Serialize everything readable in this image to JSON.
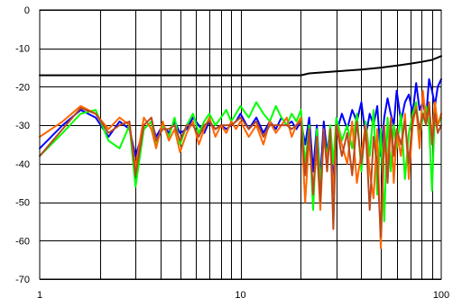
{
  "chart_data": {
    "type": "line",
    "x_scale": "log",
    "xlim": [
      1,
      100
    ],
    "ylim": [
      -70,
      0
    ],
    "grid": true,
    "legend": "none",
    "x_tick_labels": [
      "1",
      "10",
      "100"
    ],
    "y_ticks": [
      0,
      -10,
      -20,
      -30,
      -40,
      -50,
      -60,
      -70
    ],
    "y_tick_labels": [
      "0",
      "-10",
      "-20",
      "-30",
      "-40",
      "-50",
      "-60",
      "-70"
    ],
    "series": [
      {
        "color": "#000000",
        "width": 4,
        "x": [
          1,
          20,
          22,
          30,
          40,
          50,
          60,
          70,
          80,
          90,
          100
        ],
        "y": [
          -17,
          -17,
          -16.5,
          -16,
          -15.5,
          -15,
          -14.5,
          -14,
          -13.5,
          -13,
          -12
        ]
      },
      {
        "color": "#0000ff",
        "width": 2,
        "x": [
          1,
          1.3,
          1.6,
          1.9,
          2.2,
          2.5,
          2.8,
          3.0,
          3.3,
          3.6,
          3.8,
          4.1,
          4.4,
          4.7,
          5.0,
          5.4,
          5.8,
          6.2,
          6.6,
          7.0,
          7.5,
          8.0,
          8.5,
          9.0,
          9.5,
          10,
          11,
          12,
          13,
          14,
          15,
          16,
          17,
          18,
          19,
          20,
          21,
          22,
          23,
          24,
          25,
          26,
          27,
          28,
          29,
          30,
          32,
          34,
          36,
          38,
          40,
          42,
          44,
          46,
          48,
          50,
          52,
          54,
          56,
          58,
          60,
          63,
          66,
          69,
          72,
          75,
          78,
          81,
          84,
          87,
          90,
          93,
          96,
          100
        ],
        "y": [
          -36,
          -30,
          -26,
          -28,
          -33,
          -29,
          -31,
          -38,
          -31,
          -29,
          -33,
          -30,
          -32,
          -29,
          -32,
          -31,
          -28,
          -30,
          -32,
          -29,
          -31,
          -30,
          -31,
          -30,
          -29,
          -27,
          -31,
          -28,
          -32,
          -29,
          -31,
          -28,
          -30,
          -29,
          -31,
          -29,
          -35,
          -28,
          -42,
          -30,
          -44,
          -29,
          -37,
          -31,
          -45,
          -32,
          -27,
          -31,
          -26,
          -29,
          -24,
          -33,
          -27,
          -30,
          -25,
          -38,
          -28,
          -23,
          -27,
          -30,
          -21,
          -29,
          -24,
          -22,
          -27,
          -19,
          -26,
          -24,
          -28,
          -18,
          -21,
          -25,
          -20,
          -18
        ]
      },
      {
        "color": "#00ff00",
        "width": 2,
        "x": [
          1,
          1.3,
          1.6,
          1.9,
          2.2,
          2.5,
          2.8,
          3.0,
          3.3,
          3.6,
          3.8,
          4.1,
          4.4,
          4.7,
          5.0,
          5.4,
          5.8,
          6.2,
          6.6,
          7.0,
          7.5,
          8.0,
          8.5,
          9.0,
          9.5,
          10,
          11,
          12,
          13,
          14,
          15,
          16,
          17,
          18,
          19,
          20,
          21,
          22,
          23,
          24,
          25,
          26,
          27,
          28,
          29,
          30,
          32,
          34,
          36,
          38,
          40,
          42,
          44,
          46,
          48,
          50,
          52,
          54,
          56,
          58,
          60,
          63,
          66,
          69,
          72,
          75,
          78,
          81,
          84,
          87,
          90,
          93,
          96,
          100
        ],
        "y": [
          -38,
          -32,
          -27,
          -26,
          -34,
          -36,
          -30,
          -46,
          -31,
          -29,
          -35,
          -30,
          -33,
          -28,
          -35,
          -30,
          -27,
          -32,
          -29,
          -27,
          -30,
          -28,
          -26,
          -29,
          -27,
          -25,
          -28,
          -24,
          -27,
          -29,
          -25,
          -28,
          -30,
          -27,
          -29,
          -26,
          -40,
          -30,
          -52,
          -31,
          -45,
          -34,
          -38,
          -30,
          -40,
          -28,
          -34,
          -30,
          -36,
          -27,
          -42,
          -29,
          -38,
          -26,
          -48,
          -31,
          -55,
          -28,
          -42,
          -30,
          -36,
          -27,
          -44,
          -32,
          -27,
          -24,
          -33,
          -28,
          -25,
          -30,
          -47,
          -26,
          -30,
          -28
        ]
      },
      {
        "color": "#ff6600",
        "width": 2,
        "x": [
          1,
          1.3,
          1.6,
          1.9,
          2.2,
          2.5,
          2.8,
          3.0,
          3.3,
          3.6,
          3.8,
          4.1,
          4.4,
          4.7,
          5.0,
          5.4,
          5.8,
          6.2,
          6.6,
          7.0,
          7.5,
          8.0,
          8.5,
          9.0,
          9.5,
          10,
          11,
          12,
          13,
          14,
          15,
          16,
          17,
          18,
          19,
          20,
          21,
          22,
          23,
          24,
          25,
          26,
          27,
          28,
          29,
          30,
          32,
          34,
          36,
          38,
          40,
          42,
          44,
          46,
          48,
          50,
          52,
          54,
          56,
          58,
          60,
          63,
          66,
          69,
          72,
          75,
          78,
          81,
          84,
          87,
          90,
          93,
          96,
          100
        ],
        "y": [
          -33,
          -29,
          -25,
          -27,
          -31,
          -28,
          -30,
          -41,
          -28,
          -31,
          -36,
          -29,
          -34,
          -31,
          -37,
          -32,
          -29,
          -35,
          -31,
          -28,
          -33,
          -30,
          -32,
          -29,
          -31,
          -29,
          -33,
          -30,
          -35,
          -29,
          -32,
          -30,
          -28,
          -33,
          -30,
          -28,
          -50,
          -33,
          -47,
          -36,
          -52,
          -32,
          -39,
          -34,
          -48,
          -30,
          -35,
          -40,
          -29,
          -45,
          -37,
          -30,
          -42,
          -49,
          -31,
          -62,
          -34,
          -40,
          -28,
          -45,
          -32,
          -38,
          -27,
          -44,
          -30,
          -25,
          -36,
          -21,
          -29,
          -26,
          -33,
          -24,
          -30,
          -27
        ]
      },
      {
        "color": "#b84a1e",
        "width": 2,
        "x": [
          1,
          1.3,
          1.6,
          1.9,
          2.2,
          2.5,
          2.8,
          3.0,
          3.3,
          3.6,
          3.8,
          4.1,
          4.4,
          4.7,
          5.0,
          5.4,
          5.8,
          6.2,
          6.6,
          7.0,
          7.5,
          8.0,
          8.5,
          9.0,
          9.5,
          10,
          11,
          12,
          13,
          14,
          15,
          16,
          17,
          18,
          19,
          20,
          21,
          22,
          23,
          24,
          25,
          26,
          27,
          28,
          29,
          30,
          32,
          34,
          36,
          38,
          40,
          42,
          44,
          46,
          48,
          50,
          52,
          54,
          56,
          58,
          60,
          63,
          66,
          69,
          72,
          75,
          78,
          81,
          84,
          87,
          90,
          93,
          96,
          100
        ],
        "y": [
          -38,
          -31,
          -25.5,
          -27,
          -32,
          -30,
          -29,
          -43,
          -30,
          -28,
          -34,
          -31,
          -31,
          -30,
          -34,
          -30,
          -30,
          -33,
          -30,
          -29,
          -31,
          -30,
          -30,
          -30,
          -29,
          -28,
          -31,
          -29,
          -33,
          -30,
          -30,
          -30,
          -30,
          -31,
          -30,
          -29,
          -43,
          -31,
          -48,
          -33,
          -50,
          -31,
          -42,
          -31,
          -57,
          -30,
          -38,
          -32,
          -43,
          -29,
          -40,
          -31,
          -52,
          -33,
          -40,
          -59,
          -30,
          -45,
          -29,
          -38,
          -31,
          -35,
          -29,
          -40,
          -28,
          -26,
          -31,
          -27,
          -30,
          -24,
          -35,
          -27,
          -32,
          -30
        ]
      }
    ]
  }
}
